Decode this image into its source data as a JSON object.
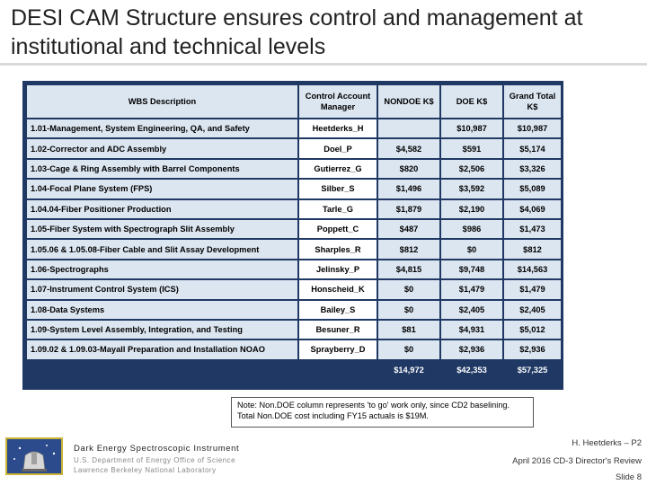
{
  "title": "DESI CAM Structure ensures control and management at institutional and technical levels",
  "table": {
    "headers": [
      "WBS Description",
      "Control Account Manager",
      "NONDOE K$",
      "DOE K$",
      "Grand Total K$"
    ],
    "rows": [
      {
        "desc": "1.01-Management, System Engineering, QA, and Safety",
        "mgr": "Heetderks_H",
        "nondoe": "",
        "doe": "$10,987",
        "total": "$10,987"
      },
      {
        "desc": "1.02-Corrector and ADC Assembly",
        "mgr": "Doel_P",
        "nondoe": "$4,582",
        "doe": "$591",
        "total": "$5,174"
      },
      {
        "desc": "1.03-Cage & Ring Assembly with Barrel Components",
        "mgr": "Gutierrez_G",
        "nondoe": "$820",
        "doe": "$2,506",
        "total": "$3,326"
      },
      {
        "desc": "1.04-Focal Plane System (FPS)",
        "mgr": "Silber_S",
        "nondoe": "$1,496",
        "doe": "$3,592",
        "total": "$5,089"
      },
      {
        "desc": "1.04.04-Fiber Positioner Production",
        "mgr": "Tarle_G",
        "nondoe": "$1,879",
        "doe": "$2,190",
        "total": "$4,069"
      },
      {
        "desc": "1.05-Fiber System with Spectrograph Slit Assembly",
        "mgr": "Poppett_C",
        "nondoe": "$487",
        "doe": "$986",
        "total": "$1,473"
      },
      {
        "desc": "1.05.06 & 1.05.08-Fiber Cable and Slit Assay Development",
        "mgr": "Sharples_R",
        "nondoe": "$812",
        "doe": "$0",
        "total": "$812"
      },
      {
        "desc": "1.06-Spectrographs",
        "mgr": "Jelinsky_P",
        "nondoe": "$4,815",
        "doe": "$9,748",
        "total": "$14,563"
      },
      {
        "desc": "1.07-Instrument Control System (ICS)",
        "mgr": "Honscheid_K",
        "nondoe": "$0",
        "doe": "$1,479",
        "total": "$1,479"
      },
      {
        "desc": "1.08-Data Systems",
        "mgr": "Bailey_S",
        "nondoe": "$0",
        "doe": "$2,405",
        "total": "$2,405"
      },
      {
        "desc": "1.09-System Level Assembly, Integration, and Testing",
        "mgr": "Besuner_R",
        "nondoe": "$81",
        "doe": "$4,931",
        "total": "$5,012"
      },
      {
        "desc": "1.09.02 & 1.09.03-Mayall Preparation and Installation NOAO",
        "mgr": "Sprayberry_D",
        "nondoe": "$0",
        "doe": "$2,936",
        "total": "$2,936"
      }
    ],
    "totals": {
      "nondoe": "$14,972",
      "doe": "$42,353",
      "total": "$57,325"
    }
  },
  "note": "Note: Non.DOE column represents 'to go' work only, since CD2 baselining. Total Non.DOE cost including FY15 actuals is $19M.",
  "footer": {
    "org": "Dark Energy Spectroscopic Instrument",
    "sub1": "U.S. Department of Energy Office of Science",
    "sub2": "Lawrence Berkeley National Laboratory",
    "author": "H. Heetderks – P2",
    "event": "April 2016  CD-3 Director's Review",
    "slide": "Slide 8"
  }
}
